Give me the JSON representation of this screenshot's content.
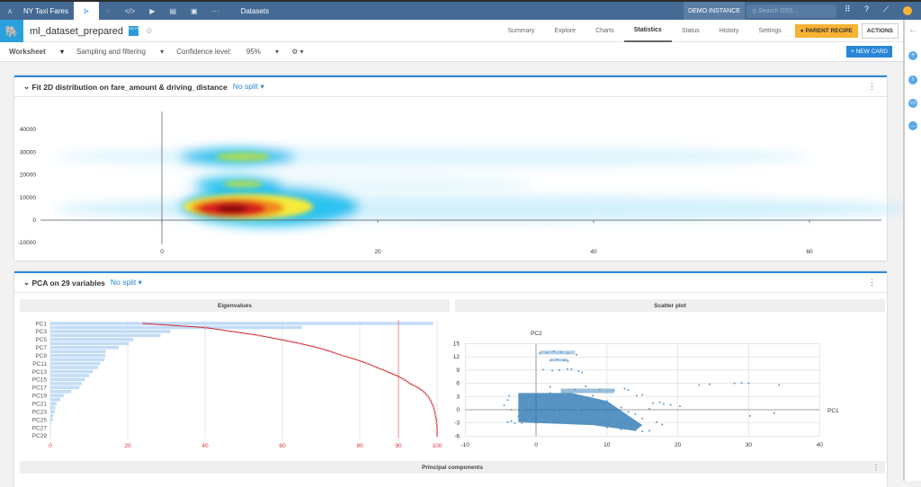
{
  "topbar": {
    "project": "NY Taxi Fares",
    "section": "Datasets",
    "instance": "DEMO INSTANCE",
    "search_placeholder": "Search DSS..."
  },
  "dataset": {
    "name": "ml_dataset_prepared",
    "badge": "GO PR"
  },
  "tabs": [
    {
      "label": "Summary"
    },
    {
      "label": "Explore"
    },
    {
      "label": "Charts"
    },
    {
      "label": "Statistics",
      "active": true
    },
    {
      "label": "Status"
    },
    {
      "label": "History"
    },
    {
      "label": "Settings"
    }
  ],
  "buttons": {
    "parent_recipe": "PARENT RECIPE",
    "actions": "ACTIONS",
    "new_card": "+ NEW CARD"
  },
  "toolbar": {
    "worksheet": "Worksheet",
    "sampling": "Sampling and filtering",
    "confidence_label": "Confidence level:",
    "confidence_value": "95%"
  },
  "card1": {
    "title": "Fit 2D distribution on fare_amount & driving_distance",
    "split": "No split"
  },
  "card2": {
    "title": "PCA on 29 variables",
    "split": "No split",
    "eigen_title": "Eigenvalues",
    "scatter_title": "Scatter plot",
    "pc_title": "Principal components"
  },
  "colors": {
    "accent": "#2a87d8",
    "topbar": "#456a94",
    "bars": "#c2dcf7",
    "cumulative": "#d0232b",
    "points": "#1f6fae"
  },
  "chart_data": [
    {
      "type": "heatmap",
      "x_ticks": [
        0,
        20,
        40,
        60
      ],
      "y_ticks": [
        40000,
        30000,
        20000,
        10000,
        0,
        -10000
      ],
      "density_peaks": [
        {
          "x": 7,
          "y": 5000,
          "level": "high"
        },
        {
          "x": 7,
          "y": 28000,
          "level": "medium"
        },
        {
          "x": 7,
          "y": 16000,
          "level": "medium"
        }
      ]
    },
    {
      "type": "bar",
      "title": "Eigenvalues",
      "categories": [
        "PC1",
        "PC2",
        "PC3",
        "PC4",
        "PC5",
        "PC6",
        "PC7",
        "PC8",
        "PC9",
        "PC10",
        "PC11",
        "PC12",
        "PC13",
        "PC14",
        "PC15",
        "PC16",
        "PC17",
        "PC18",
        "PC19",
        "PC20",
        "PC21",
        "PC22",
        "PC23",
        "PC24",
        "PC25",
        "PC26",
        "PC27",
        "PC28",
        "PC29"
      ],
      "y_tick_labels": [
        "PC1",
        "PC3",
        "PC5",
        "PC7",
        "PC9",
        "PC11",
        "PC13",
        "PC15",
        "PC17",
        "PC19",
        "PC21",
        "PC23",
        "PC25",
        "PC27",
        "PC29"
      ],
      "values": [
        99,
        65,
        31,
        28.5,
        21.5,
        20.3,
        17.7,
        14.3,
        14.2,
        14,
        12.8,
        12.3,
        11,
        10,
        9,
        8.1,
        7.5,
        5.4,
        3.5,
        2.6,
        1.6,
        1.3,
        1.2,
        0.8,
        0.6,
        0.2,
        0.1,
        0.1,
        0.1
      ],
      "cumulative": [
        24,
        40,
        47,
        54,
        59.5,
        64.5,
        69,
        72.5,
        75.5,
        79,
        82,
        84.5,
        87,
        89.5,
        91.5,
        93,
        95,
        96.5,
        97.5,
        98.2,
        98.7,
        99.1,
        99.4,
        99.6,
        99.8,
        99.9,
        100,
        100,
        100
      ],
      "threshold": 90,
      "x_ticks": [
        0,
        20,
        40,
        60,
        80,
        90,
        100
      ],
      "xlim": [
        0,
        100
      ]
    },
    {
      "type": "scatter",
      "title": "Scatter plot",
      "xlabel": "PC1",
      "ylabel": "PC2",
      "xlim": [
        -10,
        40
      ],
      "ylim": [
        -6,
        15
      ],
      "x_ticks": [
        -10,
        0,
        10,
        20,
        30,
        40
      ],
      "y_ticks": [
        15,
        12,
        9,
        6,
        3,
        0,
        -3,
        -6
      ],
      "points": [
        [
          23,
          5.6
        ],
        [
          24.5,
          5.8
        ],
        [
          28,
          6
        ],
        [
          29,
          6.1
        ],
        [
          30,
          6
        ],
        [
          34.3,
          5.6
        ],
        [
          30.2,
          -1.4
        ],
        [
          33.6,
          -0.8
        ],
        [
          20.3,
          0.8
        ],
        [
          19,
          1.1
        ],
        [
          18,
          1.3
        ],
        [
          17.5,
          1.7
        ],
        [
          17.8,
          -3.4
        ],
        [
          17,
          -2.8
        ],
        [
          16,
          -4.8
        ],
        [
          15,
          -4.9
        ],
        [
          14,
          -4
        ],
        [
          13,
          -3
        ],
        [
          12,
          -2
        ],
        [
          1,
          9.1
        ],
        [
          2.3,
          8.9
        ],
        [
          3.3,
          9
        ],
        [
          4.4,
          9.2
        ],
        [
          5,
          9.2
        ],
        [
          6,
          8.8
        ],
        [
          6.5,
          8.5
        ],
        [
          0.5,
          12.8
        ],
        [
          1.5,
          13
        ],
        [
          2.5,
          13.3
        ],
        [
          3.5,
          13.1
        ],
        [
          4.5,
          12.8
        ],
        [
          5.7,
          12.5
        ],
        [
          2,
          11.2
        ],
        [
          3,
          11.4
        ],
        [
          4,
          11.2
        ],
        [
          4.5,
          11
        ],
        [
          -4.5,
          1
        ],
        [
          -4,
          2.2
        ],
        [
          -3.8,
          3.2
        ],
        [
          -3.5,
          0
        ],
        [
          -4,
          -2.8
        ],
        [
          -3.5,
          -2.6
        ],
        [
          -3,
          -3
        ],
        [
          2,
          5.2
        ],
        [
          5.5,
          4.6
        ],
        [
          7,
          5.3
        ],
        [
          9,
          4.6
        ],
        [
          11,
          4.4
        ],
        [
          12.5,
          4.8
        ],
        [
          13,
          4.5
        ],
        [
          14.2,
          3.2
        ],
        [
          15,
          3.4
        ],
        [
          16.5,
          1.5
        ],
        [
          16,
          0.2
        ],
        [
          10,
          2
        ],
        [
          8,
          1
        ],
        [
          6,
          0
        ],
        [
          4,
          -1
        ],
        [
          2,
          -2
        ],
        [
          0,
          -1
        ],
        [
          -2,
          0
        ],
        [
          -1,
          2
        ],
        [
          1,
          3
        ],
        [
          3,
          2
        ],
        [
          5,
          3
        ],
        [
          7,
          2
        ],
        [
          9,
          -1
        ],
        [
          11,
          -3
        ],
        [
          13,
          -3.8
        ],
        [
          -2,
          -3
        ],
        [
          0,
          -3
        ],
        [
          2,
          -2.8
        ],
        [
          4,
          -3
        ],
        [
          6,
          -2
        ],
        [
          8,
          -2.5
        ],
        [
          10,
          -4
        ],
        [
          12,
          -4.5
        ],
        [
          14,
          -4.7
        ],
        [
          -2,
          3.6
        ],
        [
          0,
          3.7
        ],
        [
          2,
          3.8
        ],
        [
          4,
          3.5
        ],
        [
          6,
          3
        ],
        [
          8,
          3.2
        ],
        [
          10,
          1
        ],
        [
          12,
          0.5
        ],
        [
          14,
          -1
        ],
        [
          15,
          -2
        ],
        [
          -2.5,
          -1.5
        ],
        [
          -1,
          -2.5
        ],
        [
          1,
          0.5
        ],
        [
          3,
          0
        ],
        [
          5,
          -1.5
        ],
        [
          7,
          -0.5
        ],
        [
          9,
          0.5
        ],
        [
          11,
          -1.5
        ],
        [
          13,
          -0.5
        ]
      ]
    }
  ]
}
